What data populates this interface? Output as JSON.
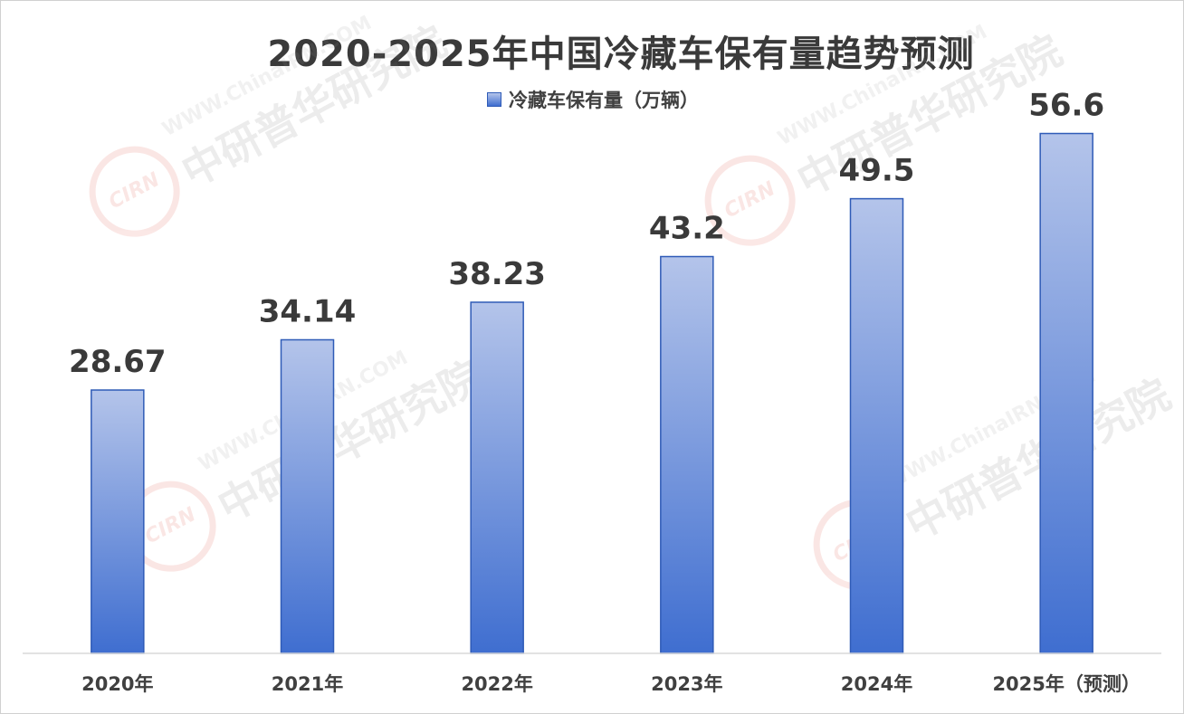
{
  "chart_data": {
    "type": "bar",
    "title": "2020-2025年中国冷藏车保有量趋势预测",
    "categories": [
      "2020年",
      "2021年",
      "2022年",
      "2023年",
      "2024年",
      "2025年（预测）"
    ],
    "series": [
      {
        "name": "冷藏车保有量（万辆）",
        "values": [
          28.67,
          34.14,
          38.23,
          43.2,
          49.5,
          56.6
        ],
        "labels": [
          "28.67",
          "34.14",
          "38.23",
          "43.2",
          "49.5",
          "56.6"
        ]
      }
    ],
    "ylim": [
      0,
      60
    ],
    "grid": false,
    "legend_position": "top",
    "colors": {
      "bar_top": "#b4c4ea",
      "bar_bottom": "#3f6ed0",
      "bar_border": "#2f5bb7"
    }
  },
  "watermark": {
    "logo_text": "CIRN",
    "name_text": "中研普华研究院",
    "url_text": "WWW.ChinaIRN.COM"
  }
}
